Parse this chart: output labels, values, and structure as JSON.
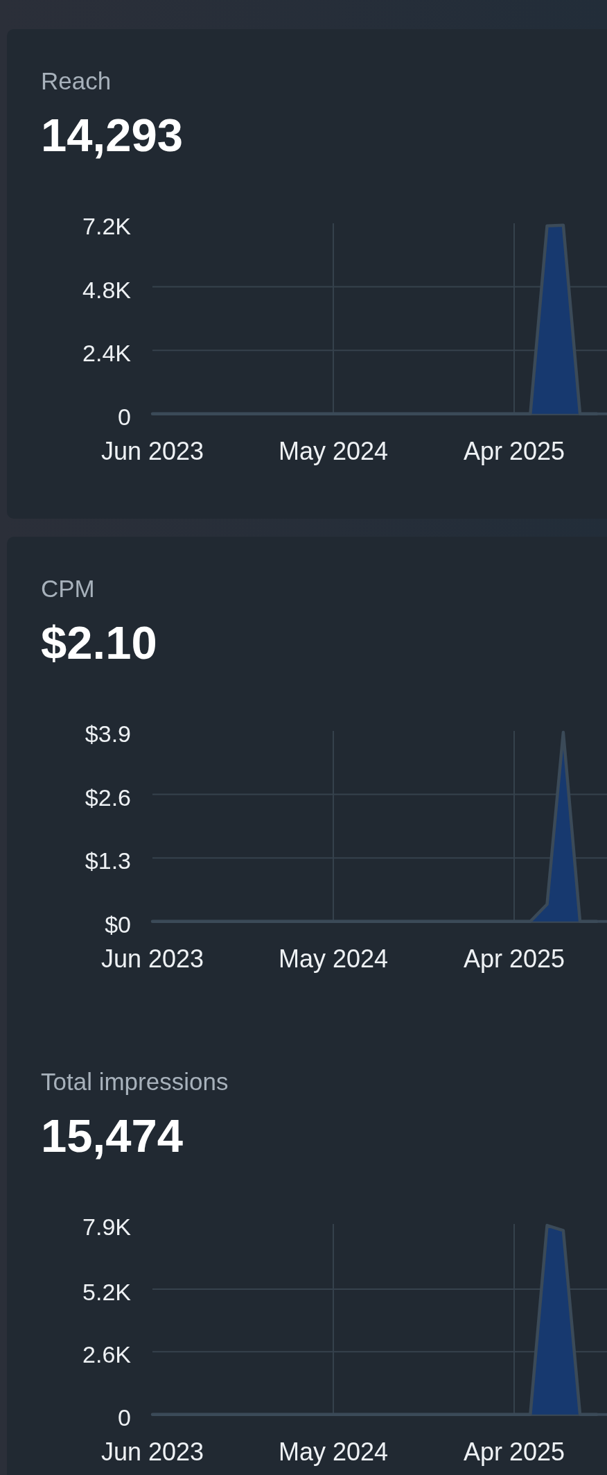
{
  "chart_data": [
    {
      "type": "area",
      "title": "Reach",
      "subtitle": "14,293",
      "x": [
        "2023-06",
        "2023-07",
        "2023-08",
        "2023-09",
        "2023-10",
        "2023-11",
        "2023-12",
        "2024-01",
        "2024-02",
        "2024-03",
        "2024-04",
        "2024-05",
        "2024-06",
        "2024-07",
        "2024-08",
        "2024-09",
        "2024-10",
        "2024-11",
        "2024-12",
        "2025-01",
        "2025-02",
        "2025-03",
        "2025-04",
        "2025-05",
        "2025-06",
        "2025-07",
        "2025-08",
        "2025-09"
      ],
      "values": [
        0,
        0,
        0,
        0,
        0,
        0,
        0,
        0,
        0,
        0,
        0,
        0,
        0,
        0,
        0,
        0,
        0,
        0,
        0,
        0,
        0,
        0,
        0,
        0,
        7100,
        7130,
        0,
        0
      ],
      "color": "#17396f",
      "xlim": [
        "2023-06-01",
        "2025-09-20"
      ],
      "xticks": [
        {
          "value": "2023-06",
          "label": "Jun 2023"
        },
        {
          "value": "2024-05",
          "label": "May 2024"
        },
        {
          "value": "2025-04",
          "label": "Apr 2025"
        }
      ],
      "ylim": [
        0,
        7200
      ],
      "yticks": [
        0,
        {
          "value": 2400,
          "label": "2.4K"
        },
        {
          "value": 4800,
          "label": "4.8K"
        },
        {
          "value": 7200,
          "label": "7.2K"
        }
      ],
      "grid": true
    },
    {
      "type": "area",
      "title": "CPM",
      "subtitle": "$2.10",
      "x": [
        "2023-06",
        "2023-07",
        "2023-08",
        "2023-09",
        "2023-10",
        "2023-11",
        "2023-12",
        "2024-01",
        "2024-02",
        "2024-03",
        "2024-04",
        "2024-05",
        "2024-06",
        "2024-07",
        "2024-08",
        "2024-09",
        "2024-10",
        "2024-11",
        "2024-12",
        "2025-01",
        "2025-02",
        "2025-03",
        "2025-04",
        "2025-05",
        "2025-06",
        "2025-07",
        "2025-08",
        "2025-09"
      ],
      "values": [
        0,
        0,
        0,
        0,
        0,
        0,
        0,
        0,
        0,
        0,
        0,
        0,
        0,
        0,
        0,
        0,
        0,
        0,
        0,
        0,
        0,
        0,
        0,
        0,
        0.35,
        3.87,
        0,
        0
      ],
      "color": "#17396f",
      "xlim": [
        "2023-06-01",
        "2025-09-20"
      ],
      "xticks": [
        {
          "value": "2023-06",
          "label": "Jun 2023"
        },
        {
          "value": "2024-05",
          "label": "May 2024"
        },
        {
          "value": "2025-04",
          "label": "Apr 2025"
        }
      ],
      "ylim": [
        0,
        3.9
      ],
      "yticks": [
        {
          "value": 0,
          "label": "$0"
        },
        {
          "value": 1.3,
          "label": "$1.3"
        },
        {
          "value": 2.6,
          "label": "$2.6"
        },
        {
          "value": 3.9,
          "label": "$3.9"
        }
      ],
      "grid": true
    },
    {
      "type": "area",
      "title": "Total impressions",
      "subtitle": "15,474",
      "x": [
        "2023-06",
        "2023-07",
        "2023-08",
        "2023-09",
        "2023-10",
        "2023-11",
        "2023-12",
        "2024-01",
        "2024-02",
        "2024-03",
        "2024-04",
        "2024-05",
        "2024-06",
        "2024-07",
        "2024-08",
        "2024-09",
        "2024-10",
        "2024-11",
        "2024-12",
        "2025-01",
        "2025-02",
        "2025-03",
        "2025-04",
        "2025-05",
        "2025-06",
        "2025-07",
        "2025-08",
        "2025-09"
      ],
      "values": [
        0,
        0,
        0,
        0,
        0,
        0,
        0,
        0,
        0,
        0,
        0,
        0,
        0,
        0,
        0,
        0,
        0,
        0,
        0,
        0,
        0,
        0,
        0,
        0,
        7840,
        7630,
        0,
        0
      ],
      "color": "#17396f",
      "xlim": [
        "2023-06-01",
        "2025-09-20"
      ],
      "xticks": [
        {
          "value": "2023-06",
          "label": "Jun 2023"
        },
        {
          "value": "2024-05",
          "label": "May 2024"
        },
        {
          "value": "2025-04",
          "label": "Apr 2025"
        }
      ],
      "ylim": [
        0,
        7900
      ],
      "yticks": [
        0,
        {
          "value": 2600,
          "label": "2.6K"
        },
        {
          "value": 5200,
          "label": "5.2K"
        },
        {
          "value": 7900,
          "label": "7.9K"
        }
      ],
      "grid": true
    }
  ]
}
